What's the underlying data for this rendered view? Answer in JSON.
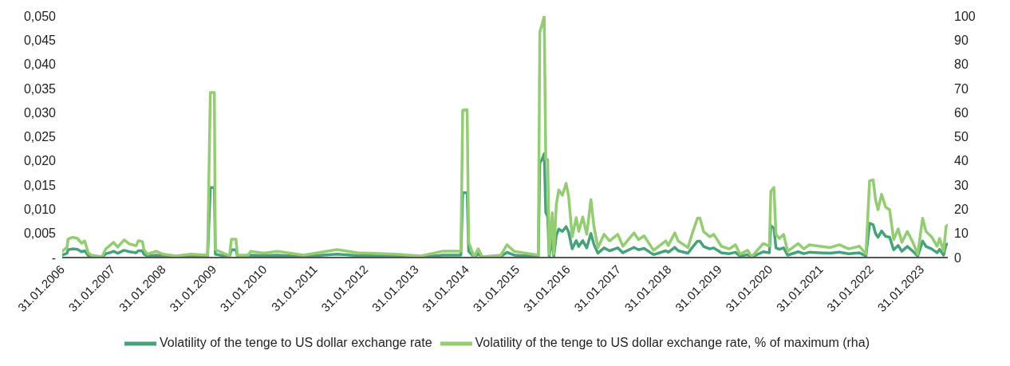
{
  "chart_data": {
    "type": "line",
    "x": [
      "2006-01-31",
      "2006-03-07",
      "2006-03-14",
      "2006-04-15",
      "2006-05-22",
      "2006-06-20",
      "2006-07-12",
      "2006-08-07",
      "2006-08-29",
      "2006-11-14",
      "2006-12-13",
      "2007-01-19",
      "2007-02-06",
      "2007-03-07",
      "2007-04-23",
      "2007-06-02",
      "2007-07-19",
      "2007-08-03",
      "2007-09-02",
      "2007-09-13",
      "2007-10-09",
      "2007-12-10",
      "2008-01-30",
      "2008-05-01",
      "2008-08-18",
      "2008-12-16",
      "2009-01-05",
      "2009-02-03",
      "2009-02-10",
      "2009-05-23",
      "2009-06-06",
      "2009-07-09",
      "2009-07-20",
      "2009-10-05",
      "2009-10-23",
      "2010-01-26",
      "2010-05-04",
      "2010-11-10",
      "2011-07-09",
      "2011-12-03",
      "2012-08-25",
      "2013-03-07",
      "2013-08-08",
      "2013-12-20",
      "2014-01-02",
      "2014-02-03",
      "2014-02-14",
      "2014-03-26",
      "2014-04-24",
      "2014-05-23",
      "2014-10-05",
      "2014-11-18",
      "2015-01-08",
      "2015-07-02",
      "2015-07-13",
      "2015-07-27",
      "2015-08-14",
      "2015-08-25",
      "2015-09-08",
      "2015-09-19",
      "2015-10-11",
      "2015-10-22",
      "2015-11-09",
      "2015-11-27",
      "2015-12-23",
      "2016-01-19",
      "2016-02-06",
      "2016-03-03",
      "2016-04-01",
      "2016-04-19",
      "2016-05-18",
      "2016-06-16",
      "2016-07-16",
      "2016-08-07",
      "2016-09-05",
      "2016-10-19",
      "2016-11-28",
      "2017-01-26",
      "2017-03-04",
      "2017-05-23",
      "2017-06-25",
      "2017-08-04",
      "2017-10-12",
      "2018-01-08",
      "2018-01-26",
      "2018-03-14",
      "2018-04-08",
      "2018-06-17",
      "2018-07-16",
      "2018-08-25",
      "2018-09-12",
      "2018-10-08",
      "2018-11-21",
      "2018-12-20",
      "2019-02-13",
      "2019-04-12",
      "2019-05-26",
      "2019-06-28",
      "2019-08-22",
      "2019-09-20",
      "2019-12-13",
      "2020-01-26",
      "2020-02-06",
      "2020-02-28",
      "2020-03-14",
      "2020-04-08",
      "2020-05-08",
      "2020-06-06",
      "2020-08-22",
      "2020-10-01",
      "2020-11-10",
      "2021-01-22",
      "2021-04-08",
      "2021-06-14",
      "2021-08-22",
      "2021-11-07",
      "2021-12-24",
      "2022-01-19",
      "2022-02-14",
      "2022-03-03",
      "2022-03-21",
      "2022-04-16",
      "2022-05-15",
      "2022-06-13",
      "2022-07-12",
      "2022-08-14",
      "2022-09-09",
      "2022-10-19",
      "2022-11-28",
      "2023-01-02",
      "2023-02-06",
      "2023-03-03",
      "2023-04-12",
      "2023-05-22",
      "2023-06-09",
      "2023-07-08",
      "2023-07-26",
      "2023-08-07"
    ],
    "series": [
      {
        "name": "Volatility of the tenge to US dollar exchange rate",
        "color": "#44a37a",
        "values": [
          0.0005,
          0.0009,
          0.0016,
          0.0018,
          0.0017,
          0.0012,
          0.0014,
          0.0004,
          0.0002,
          0.0001,
          0.0008,
          0.0011,
          0.0013,
          0.0009,
          0.0015,
          0.0012,
          0.001,
          0.0014,
          0.0014,
          0.0007,
          0.0003,
          0.0005,
          0.0003,
          0.0001,
          0.0003,
          0.0002,
          0.0145,
          0.0145,
          0.0007,
          0.0001,
          0.0016,
          0.0016,
          0.0002,
          0.0002,
          0.0005,
          0.0004,
          0.0005,
          0.0002,
          0.0007,
          0.0004,
          0.0003,
          0.0001,
          0.0005,
          0.0005,
          0.0134,
          0.0134,
          0.0013,
          0.0001,
          0.0008,
          0.0001,
          0.0002,
          0.0011,
          0.0005,
          0.0002,
          0.0196,
          0.0202,
          0.0215,
          0.0093,
          0.0085,
          0.0003,
          0.0039,
          0.0003,
          0.0046,
          0.0059,
          0.0054,
          0.0064,
          0.0053,
          0.0018,
          0.0035,
          0.0023,
          0.0035,
          0.002,
          0.005,
          0.0027,
          0.0009,
          0.002,
          0.0014,
          0.002,
          0.001,
          0.0021,
          0.0016,
          0.0019,
          0.0006,
          0.0014,
          0.0011,
          0.0021,
          0.0014,
          0.0009,
          0.002,
          0.0034,
          0.0034,
          0.0023,
          0.0018,
          0.002,
          0.001,
          0.0008,
          0.0011,
          0.0003,
          0.0006,
          0.0001,
          0.0012,
          0.001,
          0.0066,
          0.0061,
          0.002,
          0.0017,
          0.002,
          0.0005,
          0.0012,
          0.0008,
          0.0011,
          0.001,
          0.0009,
          0.0011,
          0.0008,
          0.001,
          0.0003,
          0.0071,
          0.0068,
          0.005,
          0.0042,
          0.0055,
          0.0044,
          0.0042,
          0.0016,
          0.0025,
          0.0013,
          0.0023,
          0.0013,
          0.0003,
          0.0034,
          0.0023,
          0.0018,
          0.001,
          0.0017,
          0.0005,
          0.0027,
          0.0028
        ]
      },
      {
        "name": "Volatility of the tenge to US dollar exchange rate, % of maximum (rha)",
        "color": "#92cd70",
        "axis": "y2",
        "values": [
          2.6,
          4.3,
          7.6,
          8.4,
          7.9,
          5.9,
          6.9,
          2,
          1,
          0.3,
          3.7,
          5.4,
          6.3,
          4.3,
          7.3,
          5.6,
          4.9,
          6.9,
          6.6,
          3.3,
          1.4,
          2.6,
          1.4,
          0.7,
          1.4,
          1,
          68.3,
          68.3,
          3.3,
          0.7,
          7.6,
          7.6,
          1,
          1,
          2.6,
          1.8,
          2.6,
          1,
          3.3,
          2,
          1.4,
          0.7,
          2.6,
          2.6,
          61,
          61.2,
          6.3,
          0.3,
          3.6,
          0.3,
          1,
          5.3,
          2.6,
          1,
          93.4,
          96,
          100,
          40.6,
          40.6,
          1.4,
          18.6,
          1.4,
          21.9,
          28,
          25.8,
          30.7,
          25.4,
          8.6,
          16.5,
          10.8,
          16.8,
          9.6,
          24,
          12.9,
          4.1,
          9.6,
          6.9,
          9.6,
          4.7,
          10.2,
          7.4,
          9,
          3,
          6.9,
          5,
          10.2,
          6.9,
          4.1,
          9.6,
          16.3,
          16.3,
          10.8,
          8.6,
          9.6,
          4.7,
          3.6,
          5.3,
          1.4,
          3,
          0.3,
          5.8,
          4.7,
          27.4,
          29,
          9.6,
          7.9,
          9.6,
          2.6,
          5.8,
          3.6,
          5.3,
          4.7,
          4.1,
          5.3,
          3.6,
          4.7,
          1.4,
          31.7,
          32.2,
          24,
          19.8,
          26.2,
          20.9,
          19.8,
          7.4,
          11.9,
          6.3,
          10.8,
          6.3,
          1.4,
          16.3,
          10.8,
          8.6,
          4.7,
          7.9,
          2.6,
          12.9,
          13.4
        ]
      }
    ],
    "xlim": [
      "2006-01-31",
      "2023-08-07"
    ],
    "xticks": [
      {
        "value": "2006-01-31",
        "label": "31.01.2006"
      },
      {
        "value": "2007-01-31",
        "label": "31.01.2007"
      },
      {
        "value": "2008-01-31",
        "label": "31.01.2008"
      },
      {
        "value": "2009-01-31",
        "label": "31.01.2009"
      },
      {
        "value": "2010-01-31",
        "label": "31.01.2010"
      },
      {
        "value": "2011-01-31",
        "label": "31.01.2011"
      },
      {
        "value": "2012-01-31",
        "label": "31.01.2012"
      },
      {
        "value": "2013-01-31",
        "label": "31.01.2013"
      },
      {
        "value": "2014-01-31",
        "label": "31.01.2014"
      },
      {
        "value": "2015-01-31",
        "label": "31.01.2015"
      },
      {
        "value": "2016-01-31",
        "label": "31.01.2016"
      },
      {
        "value": "2017-01-31",
        "label": "31.01.2017"
      },
      {
        "value": "2018-01-31",
        "label": "31.01.2018"
      },
      {
        "value": "2019-01-31",
        "label": "31.01.2019"
      },
      {
        "value": "2020-01-31",
        "label": "31.01.2020"
      },
      {
        "value": "2021-01-31",
        "label": "31.01.2021"
      },
      {
        "value": "2022-01-31",
        "label": "31.01.2022"
      },
      {
        "value": "2023-01-31",
        "label": "31.01.2023"
      }
    ],
    "ylim": [
      0,
      0.05
    ],
    "yticks": [
      {
        "value": 0,
        "label": "-"
      },
      {
        "value": 0.005,
        "label": "0,005"
      },
      {
        "value": 0.01,
        "label": "0,010"
      },
      {
        "value": 0.015,
        "label": "0,015"
      },
      {
        "value": 0.02,
        "label": "0,020"
      },
      {
        "value": 0.025,
        "label": "0,025"
      },
      {
        "value": 0.03,
        "label": "0,030"
      },
      {
        "value": 0.035,
        "label": "0,035"
      },
      {
        "value": 0.04,
        "label": "0,040"
      },
      {
        "value": 0.045,
        "label": "0,045"
      },
      {
        "value": 0.05,
        "label": "0,050"
      }
    ],
    "y2lim": [
      0,
      100
    ],
    "y2ticks": [
      0,
      10,
      20,
      30,
      40,
      50,
      60,
      70,
      80,
      90,
      100
    ],
    "legend": "bottom",
    "marker": "none",
    "line_style": "solid"
  }
}
